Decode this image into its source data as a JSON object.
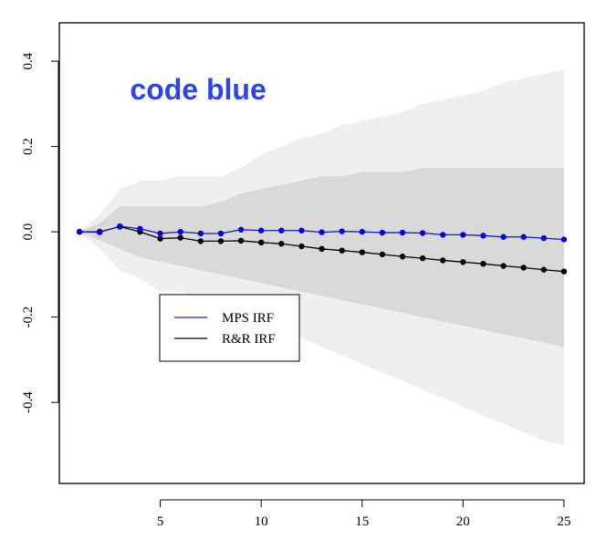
{
  "chart_data": {
    "type": "line",
    "title": "",
    "xlabel": "",
    "ylabel": "",
    "xlim": [
      0,
      26
    ],
    "ylim": [
      -0.59,
      0.49
    ],
    "x_ticks": [
      5,
      10,
      15,
      20,
      25
    ],
    "y_ticks": [
      0.4,
      0.2,
      0.0,
      -0.2,
      -0.4
    ],
    "x_tick_labels": [
      "5",
      "10",
      "15",
      "20",
      "25"
    ],
    "y_tick_labels": [
      "0.4",
      "0.2",
      "0.0",
      "-0.2",
      "-0.4"
    ],
    "annotation": {
      "text": "code blue",
      "color": "#2b45e6",
      "x": 3.5,
      "y": 0.31
    },
    "legend": {
      "placement": "lower-left",
      "entries": [
        {
          "label": "MPS IRF",
          "color": "#1a1ab0"
        },
        {
          "label": "R&R IRF",
          "color": "#000000"
        }
      ]
    },
    "x": [
      1,
      2,
      3,
      4,
      5,
      6,
      7,
      8,
      9,
      10,
      11,
      12,
      13,
      14,
      15,
      16,
      17,
      18,
      19,
      20,
      21,
      22,
      23,
      24,
      25
    ],
    "series": [
      {
        "name": "MPS IRF",
        "color": "#1a1ab0",
        "marker_color": "#0000e0",
        "values": [
          0.0,
          -0.001,
          0.013,
          0.007,
          -0.004,
          0.0,
          -0.004,
          -0.004,
          0.005,
          0.003,
          0.003,
          0.003,
          -0.001,
          0.001,
          0.0,
          -0.002,
          -0.002,
          -0.003,
          -0.007,
          -0.007,
          -0.009,
          -0.012,
          -0.012,
          -0.015,
          -0.018
        ]
      },
      {
        "name": "R&R IRF",
        "color": "#000000",
        "marker_color": "#000000",
        "values": [
          0.0,
          0.0,
          0.012,
          0.0,
          -0.016,
          -0.014,
          -0.022,
          -0.022,
          -0.021,
          -0.025,
          -0.028,
          -0.034,
          -0.04,
          -0.044,
          -0.048,
          -0.053,
          -0.058,
          -0.062,
          -0.067,
          -0.071,
          -0.075,
          -0.08,
          -0.084,
          -0.089,
          -0.093
        ]
      }
    ],
    "bands": [
      {
        "name": "outer",
        "color": "#efefef",
        "upper": [
          0.0,
          0.04,
          0.1,
          0.12,
          0.12,
          0.13,
          0.13,
          0.13,
          0.15,
          0.18,
          0.2,
          0.22,
          0.23,
          0.25,
          0.26,
          0.27,
          0.28,
          0.3,
          0.31,
          0.32,
          0.33,
          0.35,
          0.36,
          0.37,
          0.38
        ],
        "lower": [
          0.0,
          -0.04,
          -0.09,
          -0.11,
          -0.14,
          -0.14,
          -0.16,
          -0.19,
          -0.2,
          -0.21,
          -0.23,
          -0.25,
          -0.27,
          -0.29,
          -0.31,
          -0.33,
          -0.35,
          -0.37,
          -0.39,
          -0.41,
          -0.43,
          -0.45,
          -0.47,
          -0.49,
          -0.5
        ]
      },
      {
        "name": "inner",
        "color": "#d9d9d9",
        "upper": [
          0.0,
          0.02,
          0.06,
          0.06,
          0.06,
          0.06,
          0.06,
          0.07,
          0.09,
          0.1,
          0.11,
          0.12,
          0.13,
          0.13,
          0.14,
          0.14,
          0.14,
          0.15,
          0.15,
          0.15,
          0.15,
          0.15,
          0.15,
          0.15,
          0.15
        ],
        "lower": [
          0.0,
          -0.02,
          -0.04,
          -0.06,
          -0.07,
          -0.08,
          -0.09,
          -0.1,
          -0.11,
          -0.12,
          -0.13,
          -0.14,
          -0.15,
          -0.16,
          -0.17,
          -0.18,
          -0.19,
          -0.2,
          -0.21,
          -0.22,
          -0.23,
          -0.24,
          -0.25,
          -0.26,
          -0.27
        ]
      }
    ]
  }
}
